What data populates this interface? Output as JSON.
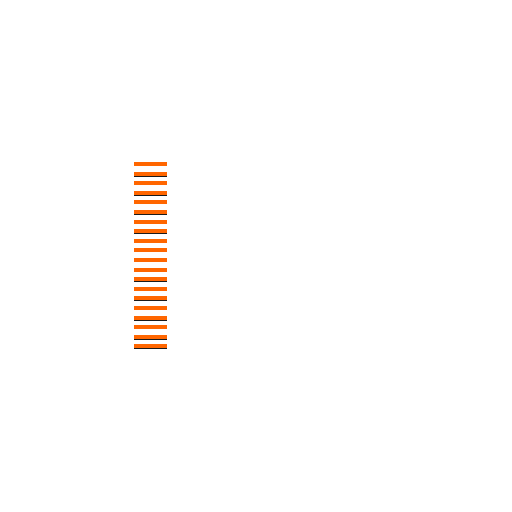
{
  "colors": {
    "background": "#ffffff",
    "stripe": "#ff6600",
    "stripe_shadow": "#1a1a1a"
  },
  "stripes": {
    "count": 20,
    "shadowed": [
      false,
      true,
      false,
      true,
      false,
      true,
      false,
      true,
      false,
      false,
      false,
      false,
      true,
      false,
      true,
      false,
      true,
      false,
      true,
      true
    ]
  }
}
